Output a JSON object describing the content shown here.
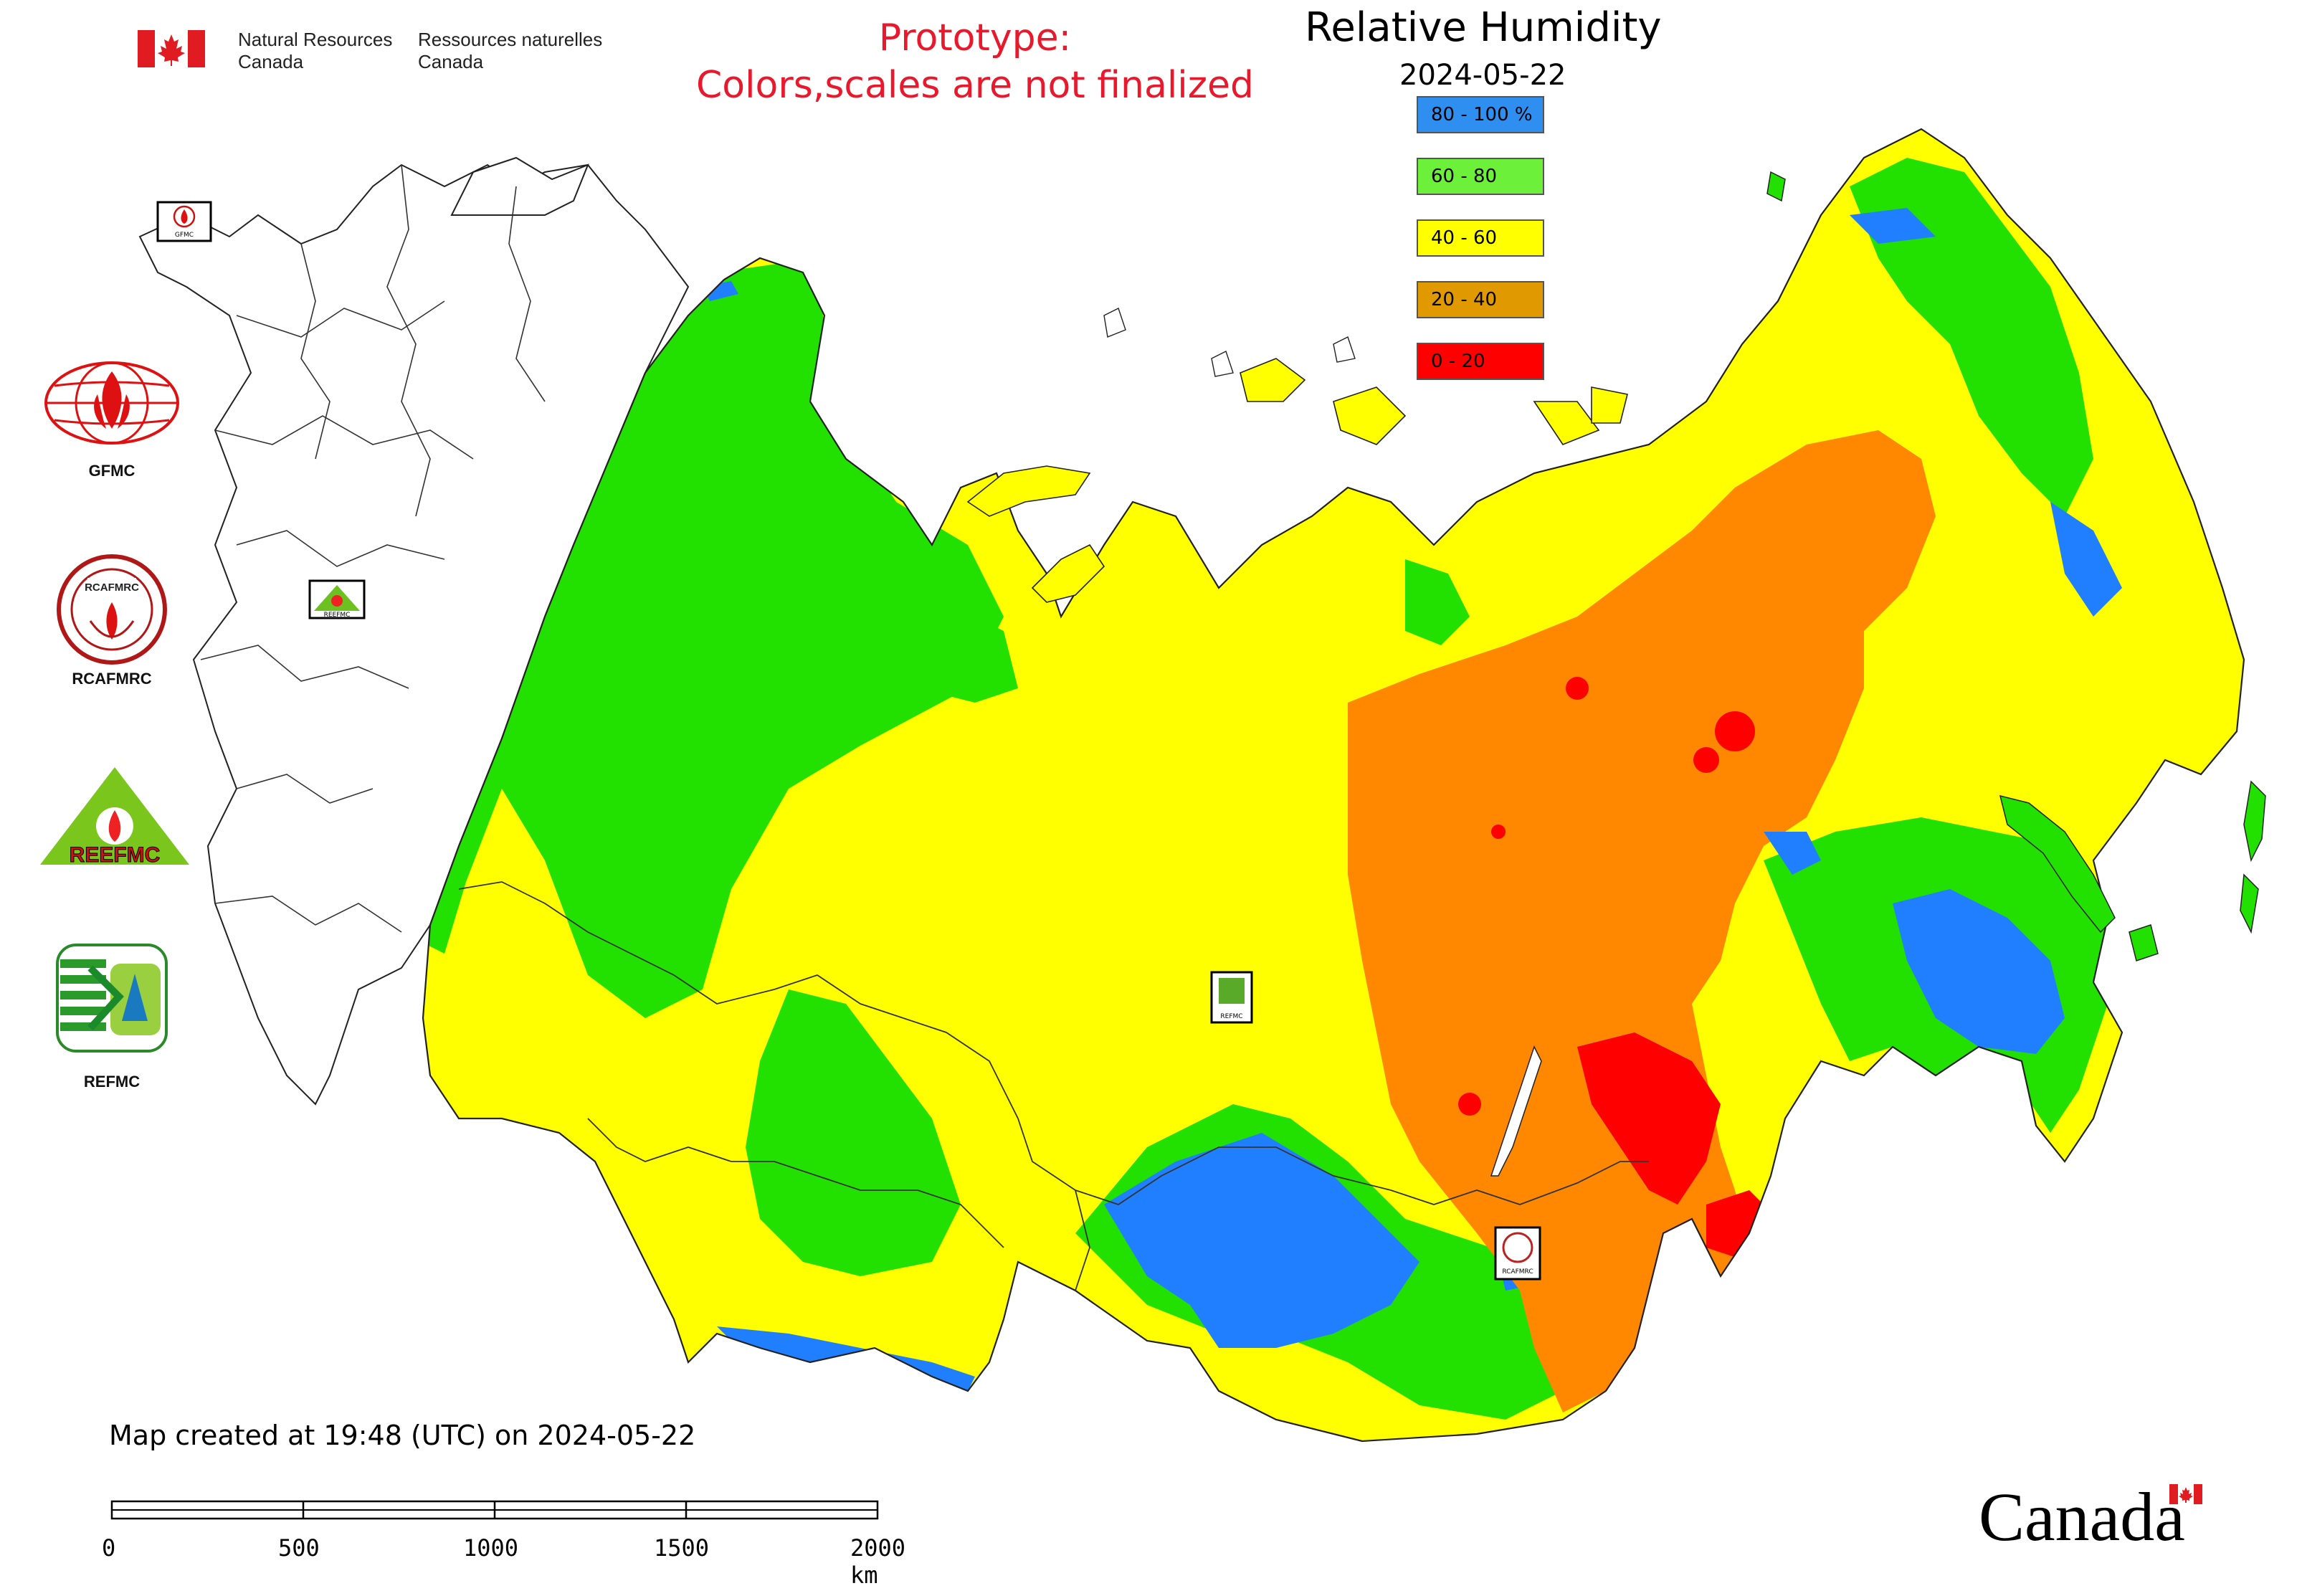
{
  "header": {
    "agency_en_line1": "Natural Resources",
    "agency_en_line2": "Canada",
    "agency_fr_line1": "Ressources naturelles",
    "agency_fr_line2": "Canada",
    "prototype_line1": "Prototype:",
    "prototype_line2": "Colors,scales are not finalized"
  },
  "title": "Relative Humidity",
  "date": "2024-05-22",
  "legend": [
    {
      "label": "80 - 100 %",
      "color": "#2f8ff0"
    },
    {
      "label": "60 - 80",
      "color": "#6df03a"
    },
    {
      "label": "40 - 60",
      "color": "#ffff00"
    },
    {
      "label": "20 - 40",
      "color": "#e09a00"
    },
    {
      "label": "0 - 20",
      "color": "#ff0000"
    }
  ],
  "map_colors": {
    "blue": "#1f7fff",
    "green": "#22e000",
    "yellow": "#ffff00",
    "orange": "#ff8800",
    "red": "#ff0000",
    "outline": "#222222"
  },
  "logos": [
    {
      "name": "GFMC",
      "label": "GFMC"
    },
    {
      "name": "RCAFMRC",
      "label": "RCAFMRC"
    },
    {
      "name": "REEFMC",
      "label": ""
    },
    {
      "name": "REFMC",
      "label": "REFMC"
    }
  ],
  "logo_text": {
    "reefmc": "REEFMC",
    "rcafmrc_badge": "RCAFMRC",
    "gfmc_small": "GFMC",
    "reefmc_small": "REEFMC",
    "refmc_small": "REFMC",
    "rcafmrc_small": "RCAFMRC"
  },
  "footer": {
    "created": "Map created at 19:48 (UTC) on 2024-05-22",
    "scale_ticks": [
      "0",
      "500",
      "1000",
      "1500",
      "2000 km"
    ],
    "wordmark": "Canada"
  }
}
